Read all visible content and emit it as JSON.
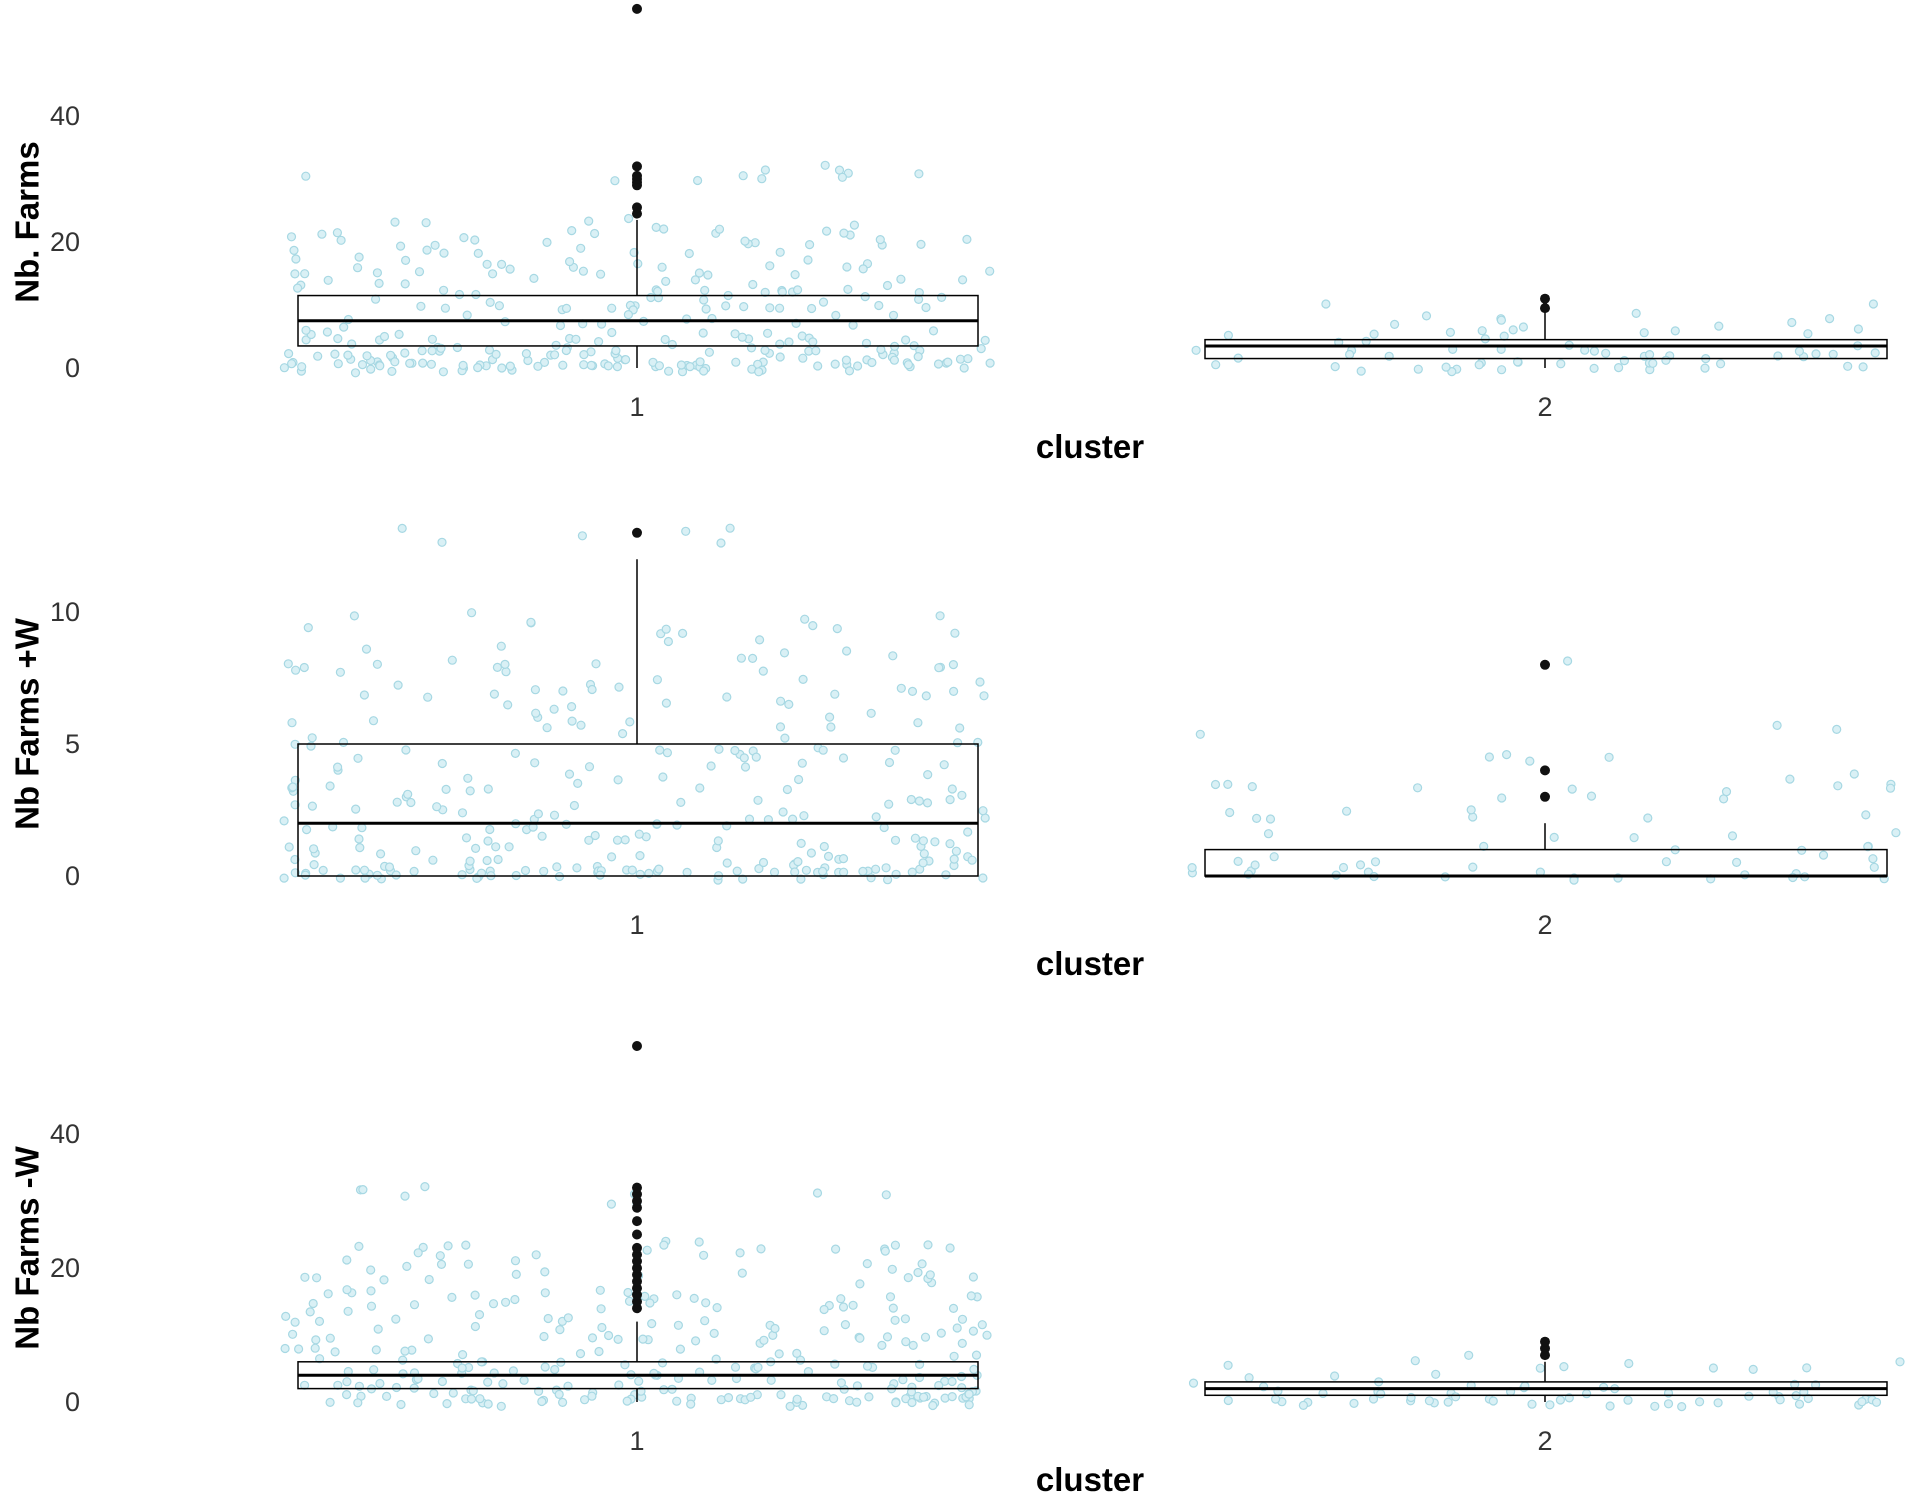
{
  "colors": {
    "jitter_point_fill": "#d9f0f5",
    "jitter_point_stroke": "#a7d8e3",
    "outlier": "#111111",
    "box_line": "#000000",
    "background": "#ffffff"
  },
  "chart_data": [
    {
      "type": "box",
      "ylabel": "Nb. Farms",
      "xlabel": "cluster",
      "ylim": [
        -1,
        57
      ],
      "yticks": [
        0,
        20,
        40
      ],
      "categories": [
        "1",
        "2"
      ],
      "boxes": [
        {
          "category": "1",
          "q1": 3.5,
          "median": 7.5,
          "q3": 11.5,
          "whisker_low": 0,
          "whisker_high": 23.5,
          "outliers": [
            24.5,
            25.5,
            29,
            29.5,
            30,
            30.5,
            32,
            57
          ],
          "jitter_max": 32
        },
        {
          "category": "2",
          "q1": 1.5,
          "median": 3.5,
          "q3": 4.5,
          "whisker_low": 0,
          "whisker_high": 9,
          "outliers": [
            9.5,
            11
          ],
          "jitter_max": 11
        }
      ],
      "jitter_points": [
        {
          "cluster": "1",
          "count": 300,
          "min": 0,
          "max": 32
        },
        {
          "cluster": "2",
          "count": 70,
          "min": 0,
          "max": 11
        }
      ]
    },
    {
      "type": "box",
      "ylabel": "Nb Farms +W",
      "xlabel": "cluster",
      "ylim": [
        -0.6,
        13.8
      ],
      "yticks": [
        0,
        5,
        10
      ],
      "categories": [
        "1",
        "2"
      ],
      "boxes": [
        {
          "category": "1",
          "q1": 0,
          "median": 2,
          "q3": 5,
          "whisker_low": 0,
          "whisker_high": 12,
          "outliers": [
            13
          ],
          "jitter_max": 13.3
        },
        {
          "category": "2",
          "q1": 0,
          "median": 0,
          "q3": 1,
          "whisker_low": 0,
          "whisker_high": 2,
          "outliers": [
            3,
            4,
            8
          ],
          "jitter_max": 8
        }
      ],
      "jitter_points": [
        {
          "cluster": "1",
          "count": 300,
          "min": 0,
          "max": 13.3
        },
        {
          "cluster": "2",
          "count": 70,
          "min": 0,
          "max": 8
        }
      ]
    },
    {
      "type": "box",
      "ylabel": "Nb Farms -W",
      "xlabel": "cluster",
      "ylim": [
        -1,
        57
      ],
      "yticks": [
        0,
        20,
        40
      ],
      "categories": [
        "1",
        "2"
      ],
      "boxes": [
        {
          "category": "1",
          "q1": 2,
          "median": 4,
          "q3": 6,
          "whisker_low": 0,
          "whisker_high": 12,
          "outliers": [
            14,
            15,
            16,
            17,
            18,
            19,
            20,
            21,
            22,
            23,
            25,
            27,
            29,
            30,
            31,
            32,
            54
          ],
          "jitter_max": 32
        },
        {
          "category": "2",
          "q1": 1,
          "median": 2,
          "q3": 3,
          "whisker_low": 0,
          "whisker_high": 6,
          "outliers": [
            7,
            8,
            9
          ],
          "jitter_max": 9
        }
      ],
      "jitter_points": [
        {
          "cluster": "1",
          "count": 300,
          "min": 0,
          "max": 32
        },
        {
          "cluster": "2",
          "count": 70,
          "min": 0,
          "max": 9
        }
      ]
    }
  ]
}
